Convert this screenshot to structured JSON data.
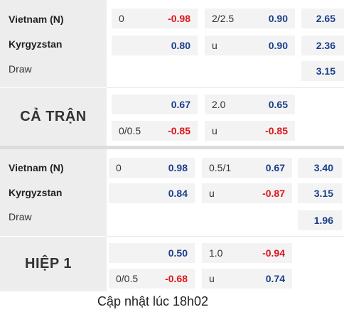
{
  "full_match": {
    "label": "CẢ TRẬN",
    "team1": "Vietnam (N)",
    "team2": "Kyrgyzstan",
    "draw": "Draw",
    "hcp": {
      "line1": "0",
      "odds1": "-0.98",
      "odds2": "0.80"
    },
    "ou": {
      "line1": "2/2.5",
      "odds1": "0.90",
      "line2": "u",
      "odds2": "0.90"
    },
    "x12": {
      "home": "2.65",
      "away": "2.36",
      "draw": "3.15"
    },
    "alt_hcp": {
      "odds1": "0.67",
      "line2": "0/0.5",
      "odds2": "-0.85"
    },
    "alt_ou": {
      "line1": "2.0",
      "odds1": "0.65",
      "line2": "u",
      "odds2": "-0.85"
    }
  },
  "first_half": {
    "label": "HIỆP 1",
    "team1": "Vietnam (N)",
    "team2": "Kyrgyzstan",
    "draw": "Draw",
    "hcp": {
      "line1": "0",
      "odds1": "0.98",
      "odds2": "0.84"
    },
    "ou": {
      "line1": "0.5/1",
      "odds1": "0.67",
      "line2": "u",
      "odds2": "-0.87"
    },
    "x12": {
      "home": "3.40",
      "away": "3.15",
      "draw": "1.96"
    },
    "alt_hcp": {
      "odds1": "0.50",
      "line2": "0/0.5",
      "odds2": "-0.68"
    },
    "alt_ou": {
      "line1": "1.0",
      "odds1": "-0.94",
      "line2": "u",
      "odds2": "0.74"
    }
  },
  "colors": {
    "positive": "#1a3f8c",
    "negative": "#e0151b",
    "panel": "#ededed",
    "cell": "#f3f3f3"
  },
  "footer": "Cập nhật lúc 18h02"
}
